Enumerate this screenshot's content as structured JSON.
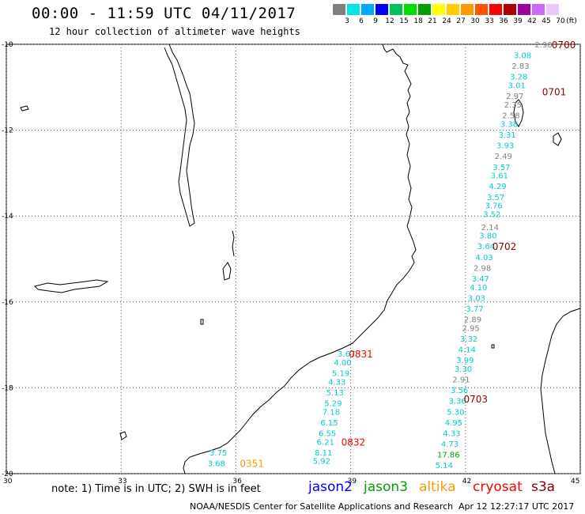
{
  "header": {
    "title": "00:00 - 11:59 UTC 04/11/2017",
    "subtitle": "12 hour collection of altimeter wave heights"
  },
  "color_scale": {
    "unit_label": "(ft)",
    "bins": [
      {
        "label": "3",
        "color": "#7f7f7f"
      },
      {
        "label": "6",
        "color": "#00e5e5"
      },
      {
        "label": "9",
        "color": "#00aaff"
      },
      {
        "label": "12",
        "color": "#0000ff"
      },
      {
        "label": "15",
        "color": "#00c060"
      },
      {
        "label": "18",
        "color": "#00e000"
      },
      {
        "label": "21",
        "color": "#00a000"
      },
      {
        "label": "24",
        "color": "#ffff00"
      },
      {
        "label": "27",
        "color": "#ffcc00"
      },
      {
        "label": "30",
        "color": "#ff9900"
      },
      {
        "label": "33",
        "color": "#ff5500"
      },
      {
        "label": "36",
        "color": "#ff0000"
      },
      {
        "label": "39",
        "color": "#b00000"
      },
      {
        "label": "42",
        "color": "#a000a0"
      },
      {
        "label": "45",
        "color": "#cc66ff"
      },
      {
        "label": "70",
        "color": "#e8c8ff"
      }
    ]
  },
  "axes": {
    "lat_labels": [
      "-10",
      "-12",
      "-14",
      "-16",
      "-18",
      "-20"
    ],
    "lon_labels": [
      "30",
      "33",
      "36",
      "39",
      "42",
      "45"
    ]
  },
  "observations": [
    {
      "lon": 44.1,
      "lat": -10.0,
      "value": "2.90",
      "color": "#808080"
    },
    {
      "lon": 43.55,
      "lat": -10.25,
      "value": "3.08",
      "color": "#00cccc"
    },
    {
      "lon": 43.5,
      "lat": -10.5,
      "value": "2.83",
      "color": "#808080"
    },
    {
      "lon": 43.45,
      "lat": -10.75,
      "value": "3.28",
      "color": "#00cccc"
    },
    {
      "lon": 43.4,
      "lat": -10.95,
      "value": "3.01",
      "color": "#00cccc"
    },
    {
      "lon": 43.35,
      "lat": -11.2,
      "value": "2.97",
      "color": "#808080"
    },
    {
      "lon": 43.3,
      "lat": -11.4,
      "value": "2.35",
      "color": "#808080"
    },
    {
      "lon": 43.25,
      "lat": -11.65,
      "value": "2.58",
      "color": "#808080"
    },
    {
      "lon": 43.2,
      "lat": -11.85,
      "value": "3.38",
      "color": "#00cccc"
    },
    {
      "lon": 43.15,
      "lat": -12.1,
      "value": "3.31",
      "color": "#00cccc"
    },
    {
      "lon": 43.1,
      "lat": -12.35,
      "value": "3.93",
      "color": "#00cccc"
    },
    {
      "lon": 43.05,
      "lat": -12.6,
      "value": "2.49",
      "color": "#808080"
    },
    {
      "lon": 43.0,
      "lat": -12.85,
      "value": "3.57",
      "color": "#00cccc"
    },
    {
      "lon": 42.95,
      "lat": -13.05,
      "value": "3.61",
      "color": "#00cccc"
    },
    {
      "lon": 42.9,
      "lat": -13.3,
      "value": "4.29",
      "color": "#00cccc"
    },
    {
      "lon": 42.85,
      "lat": -13.55,
      "value": "3.57",
      "color": "#00cccc"
    },
    {
      "lon": 42.8,
      "lat": -13.75,
      "value": "3.76",
      "color": "#00cccc"
    },
    {
      "lon": 42.75,
      "lat": -13.95,
      "value": "3.52",
      "color": "#00cccc"
    },
    {
      "lon": 42.7,
      "lat": -14.25,
      "value": "2.14",
      "color": "#808080"
    },
    {
      "lon": 42.65,
      "lat": -14.45,
      "value": "3.80",
      "color": "#00cccc"
    },
    {
      "lon": 42.6,
      "lat": -14.7,
      "value": "3.64",
      "color": "#00cccc"
    },
    {
      "lon": 42.55,
      "lat": -14.95,
      "value": "4.03",
      "color": "#00cccc"
    },
    {
      "lon": 42.5,
      "lat": -15.2,
      "value": "2.98",
      "color": "#808080"
    },
    {
      "lon": 42.45,
      "lat": -15.45,
      "value": "3.47",
      "color": "#00cccc"
    },
    {
      "lon": 42.4,
      "lat": -15.65,
      "value": "4.10",
      "color": "#00cccc"
    },
    {
      "lon": 42.35,
      "lat": -15.9,
      "value": "3.03",
      "color": "#00cccc"
    },
    {
      "lon": 42.3,
      "lat": -16.15,
      "value": "3.77",
      "color": "#00cccc"
    },
    {
      "lon": 42.25,
      "lat": -16.4,
      "value": "2.89",
      "color": "#808080"
    },
    {
      "lon": 42.2,
      "lat": -16.6,
      "value": "2.95",
      "color": "#808080"
    },
    {
      "lon": 42.15,
      "lat": -16.85,
      "value": "3.32",
      "color": "#00cccc"
    },
    {
      "lon": 42.1,
      "lat": -17.1,
      "value": "4.14",
      "color": "#00cccc"
    },
    {
      "lon": 42.05,
      "lat": -17.35,
      "value": "3.99",
      "color": "#00cccc"
    },
    {
      "lon": 42.0,
      "lat": -17.55,
      "value": "3.30",
      "color": "#00cccc"
    },
    {
      "lon": 41.95,
      "lat": -17.8,
      "value": "2.91",
      "color": "#808080"
    },
    {
      "lon": 41.9,
      "lat": -18.05,
      "value": "3.56",
      "color": "#00cccc"
    },
    {
      "lon": 41.85,
      "lat": -18.3,
      "value": "3.36",
      "color": "#00cccc"
    },
    {
      "lon": 41.8,
      "lat": -18.55,
      "value": "5.30",
      "color": "#00cccc"
    },
    {
      "lon": 41.75,
      "lat": -18.8,
      "value": "4.95",
      "color": "#00cccc"
    },
    {
      "lon": 41.7,
      "lat": -19.05,
      "value": "4.33",
      "color": "#00cccc"
    },
    {
      "lon": 41.65,
      "lat": -19.3,
      "value": "4.73",
      "color": "#00cccc"
    },
    {
      "lon": 41.55,
      "lat": -19.55,
      "value": "17.86",
      "color": "#00a000"
    },
    {
      "lon": 41.5,
      "lat": -19.8,
      "value": "5.14",
      "color": "#00cccc"
    },
    {
      "lon": 38.95,
      "lat": -17.2,
      "value": "3.67",
      "color": "#00cccc"
    },
    {
      "lon": 38.85,
      "lat": -17.4,
      "value": "4.00",
      "color": "#00cccc"
    },
    {
      "lon": 38.8,
      "lat": -17.65,
      "value": "5.19",
      "color": "#00cccc"
    },
    {
      "lon": 38.7,
      "lat": -17.85,
      "value": "4.33",
      "color": "#00cccc"
    },
    {
      "lon": 38.65,
      "lat": -18.1,
      "value": "5.13",
      "color": "#00cccc"
    },
    {
      "lon": 38.6,
      "lat": -18.35,
      "value": "5.29",
      "color": "#00cccc"
    },
    {
      "lon": 38.55,
      "lat": -18.55,
      "value": "7.18",
      "color": "#00cccc"
    },
    {
      "lon": 38.5,
      "lat": -18.8,
      "value": "6.15",
      "color": "#00cccc"
    },
    {
      "lon": 38.45,
      "lat": -19.05,
      "value": "6.55",
      "color": "#00cccc"
    },
    {
      "lon": 38.4,
      "lat": -19.25,
      "value": "6.21",
      "color": "#00cccc"
    },
    {
      "lon": 38.35,
      "lat": -19.5,
      "value": "8.11",
      "color": "#00cccc"
    },
    {
      "lon": 38.3,
      "lat": -19.7,
      "value": "5.92",
      "color": "#00cccc"
    },
    {
      "lon": 35.6,
      "lat": -19.5,
      "value": "3.75",
      "color": "#00cccc"
    },
    {
      "lon": 35.55,
      "lat": -19.75,
      "value": "3.68",
      "color": "#00cccc"
    }
  ],
  "pass_labels": [
    {
      "lon": 44.5,
      "lat": -10.0,
      "text": "0700",
      "color": "#8b0000"
    },
    {
      "lon": 44.25,
      "lat": -11.1,
      "text": "0701",
      "color": "#8b0000"
    },
    {
      "lon": 42.95,
      "lat": -14.7,
      "text": "0702",
      "color": "#8b0000"
    },
    {
      "lon": 42.2,
      "lat": -18.25,
      "text": "0703",
      "color": "#8b0000"
    },
    {
      "lon": 39.2,
      "lat": -17.2,
      "text": "0831",
      "color": "#ff0000"
    },
    {
      "lon": 39.0,
      "lat": -19.25,
      "text": "0832",
      "color": "#ff0000"
    },
    {
      "lon": 36.35,
      "lat": -19.75,
      "text": "0351",
      "color": "#ff9900"
    }
  ],
  "legend": {
    "note": "note: 1) Time is in UTC; 2) SWH is in feet",
    "satellites": [
      {
        "name": "jason2",
        "color": "#0000ff"
      },
      {
        "name": "jason3",
        "color": "#00a000"
      },
      {
        "name": "altika",
        "color": "#ff9900"
      },
      {
        "name": "cryosat",
        "color": "#ff0000"
      },
      {
        "name": "s3a",
        "color": "#8b0000"
      }
    ]
  },
  "footer": {
    "credit": "NOAA/NESDIS Center for Satellite Applications and Research",
    "timestamp": "Apr 12 12:27:17 UTC 2017"
  }
}
